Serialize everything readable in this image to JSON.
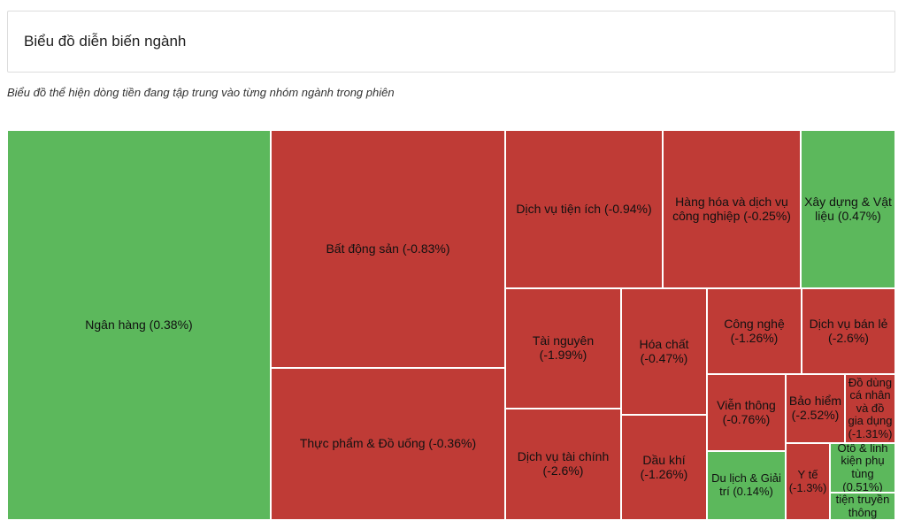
{
  "header": {
    "title": "Biểu đồ diễn biến ngành"
  },
  "subtitle": "Biểu đồ thể hiện dòng tiền đang tập trung vào từng nhóm ngành trong phiên",
  "colors": {
    "positive": "#5cb85c",
    "negative": "#bf3b36"
  },
  "chart_data": {
    "type": "treemap",
    "series": [
      {
        "name": "Ngân hàng",
        "change": 0.38,
        "label": "Ngân hàng (0.38%)"
      },
      {
        "name": "Bất động sản",
        "change": -0.83,
        "label": "Bất động sản (-0.83%)"
      },
      {
        "name": "Thực phẩm & Đồ uống",
        "change": -0.36,
        "label": "Thực phẩm & Đồ uống (-0.36%)"
      },
      {
        "name": "Dịch vụ tiện ích",
        "change": -0.94,
        "label": "Dịch vụ tiện ích (-0.94%)"
      },
      {
        "name": "Hàng hóa và dịch vụ công nghiệp",
        "change": -0.25,
        "label": "Hàng hóa và dịch vụ công nghiệp (-0.25%)"
      },
      {
        "name": "Xây dựng & Vật liệu",
        "change": 0.47,
        "label": "Xây dựng & Vật liệu (0.47%)"
      },
      {
        "name": "Tài nguyên",
        "change": -1.99,
        "label": "Tài nguyên (-1.99%)"
      },
      {
        "name": "Hóa chất",
        "change": -0.47,
        "label": "Hóa chất (-0.47%)"
      },
      {
        "name": "Công nghệ",
        "change": -1.26,
        "label": "Công nghệ (-1.26%)"
      },
      {
        "name": "Dịch vụ bán lẻ",
        "change": -2.6,
        "label": "Dịch vụ bán lẻ (-2.6%)"
      },
      {
        "name": "Viễn thông",
        "change": -0.76,
        "label": "Viễn thông (-0.76%)"
      },
      {
        "name": "Bảo hiểm",
        "change": -2.52,
        "label": "Bảo hiểm (-2.52%)"
      },
      {
        "name": "Đồ dùng cá nhân và đồ gia dụng",
        "change": -1.31,
        "label": "Đồ dùng cá nhân và đồ gia dụng (-1.31%)"
      },
      {
        "name": "Dịch vụ tài chính",
        "change": -2.6,
        "label": "Dịch vụ tài chính (-2.6%)"
      },
      {
        "name": "Dầu khí",
        "change": -1.26,
        "label": "Dầu khí (-1.26%)"
      },
      {
        "name": "Du lịch & Giải trí",
        "change": 0.14,
        "label": "Du lịch & Giải trí (0.14%)"
      },
      {
        "name": "Y tế",
        "change": -1.3,
        "label": "Y tế (-1.3%)"
      },
      {
        "name": "Otô & linh kiện phụ tùng",
        "change": 0.51,
        "label": "Otô & linh kiện phụ tùng (0.51%)"
      },
      {
        "name": "tiện truyền thông",
        "change": null,
        "label": "tiện truyền thông"
      }
    ]
  }
}
